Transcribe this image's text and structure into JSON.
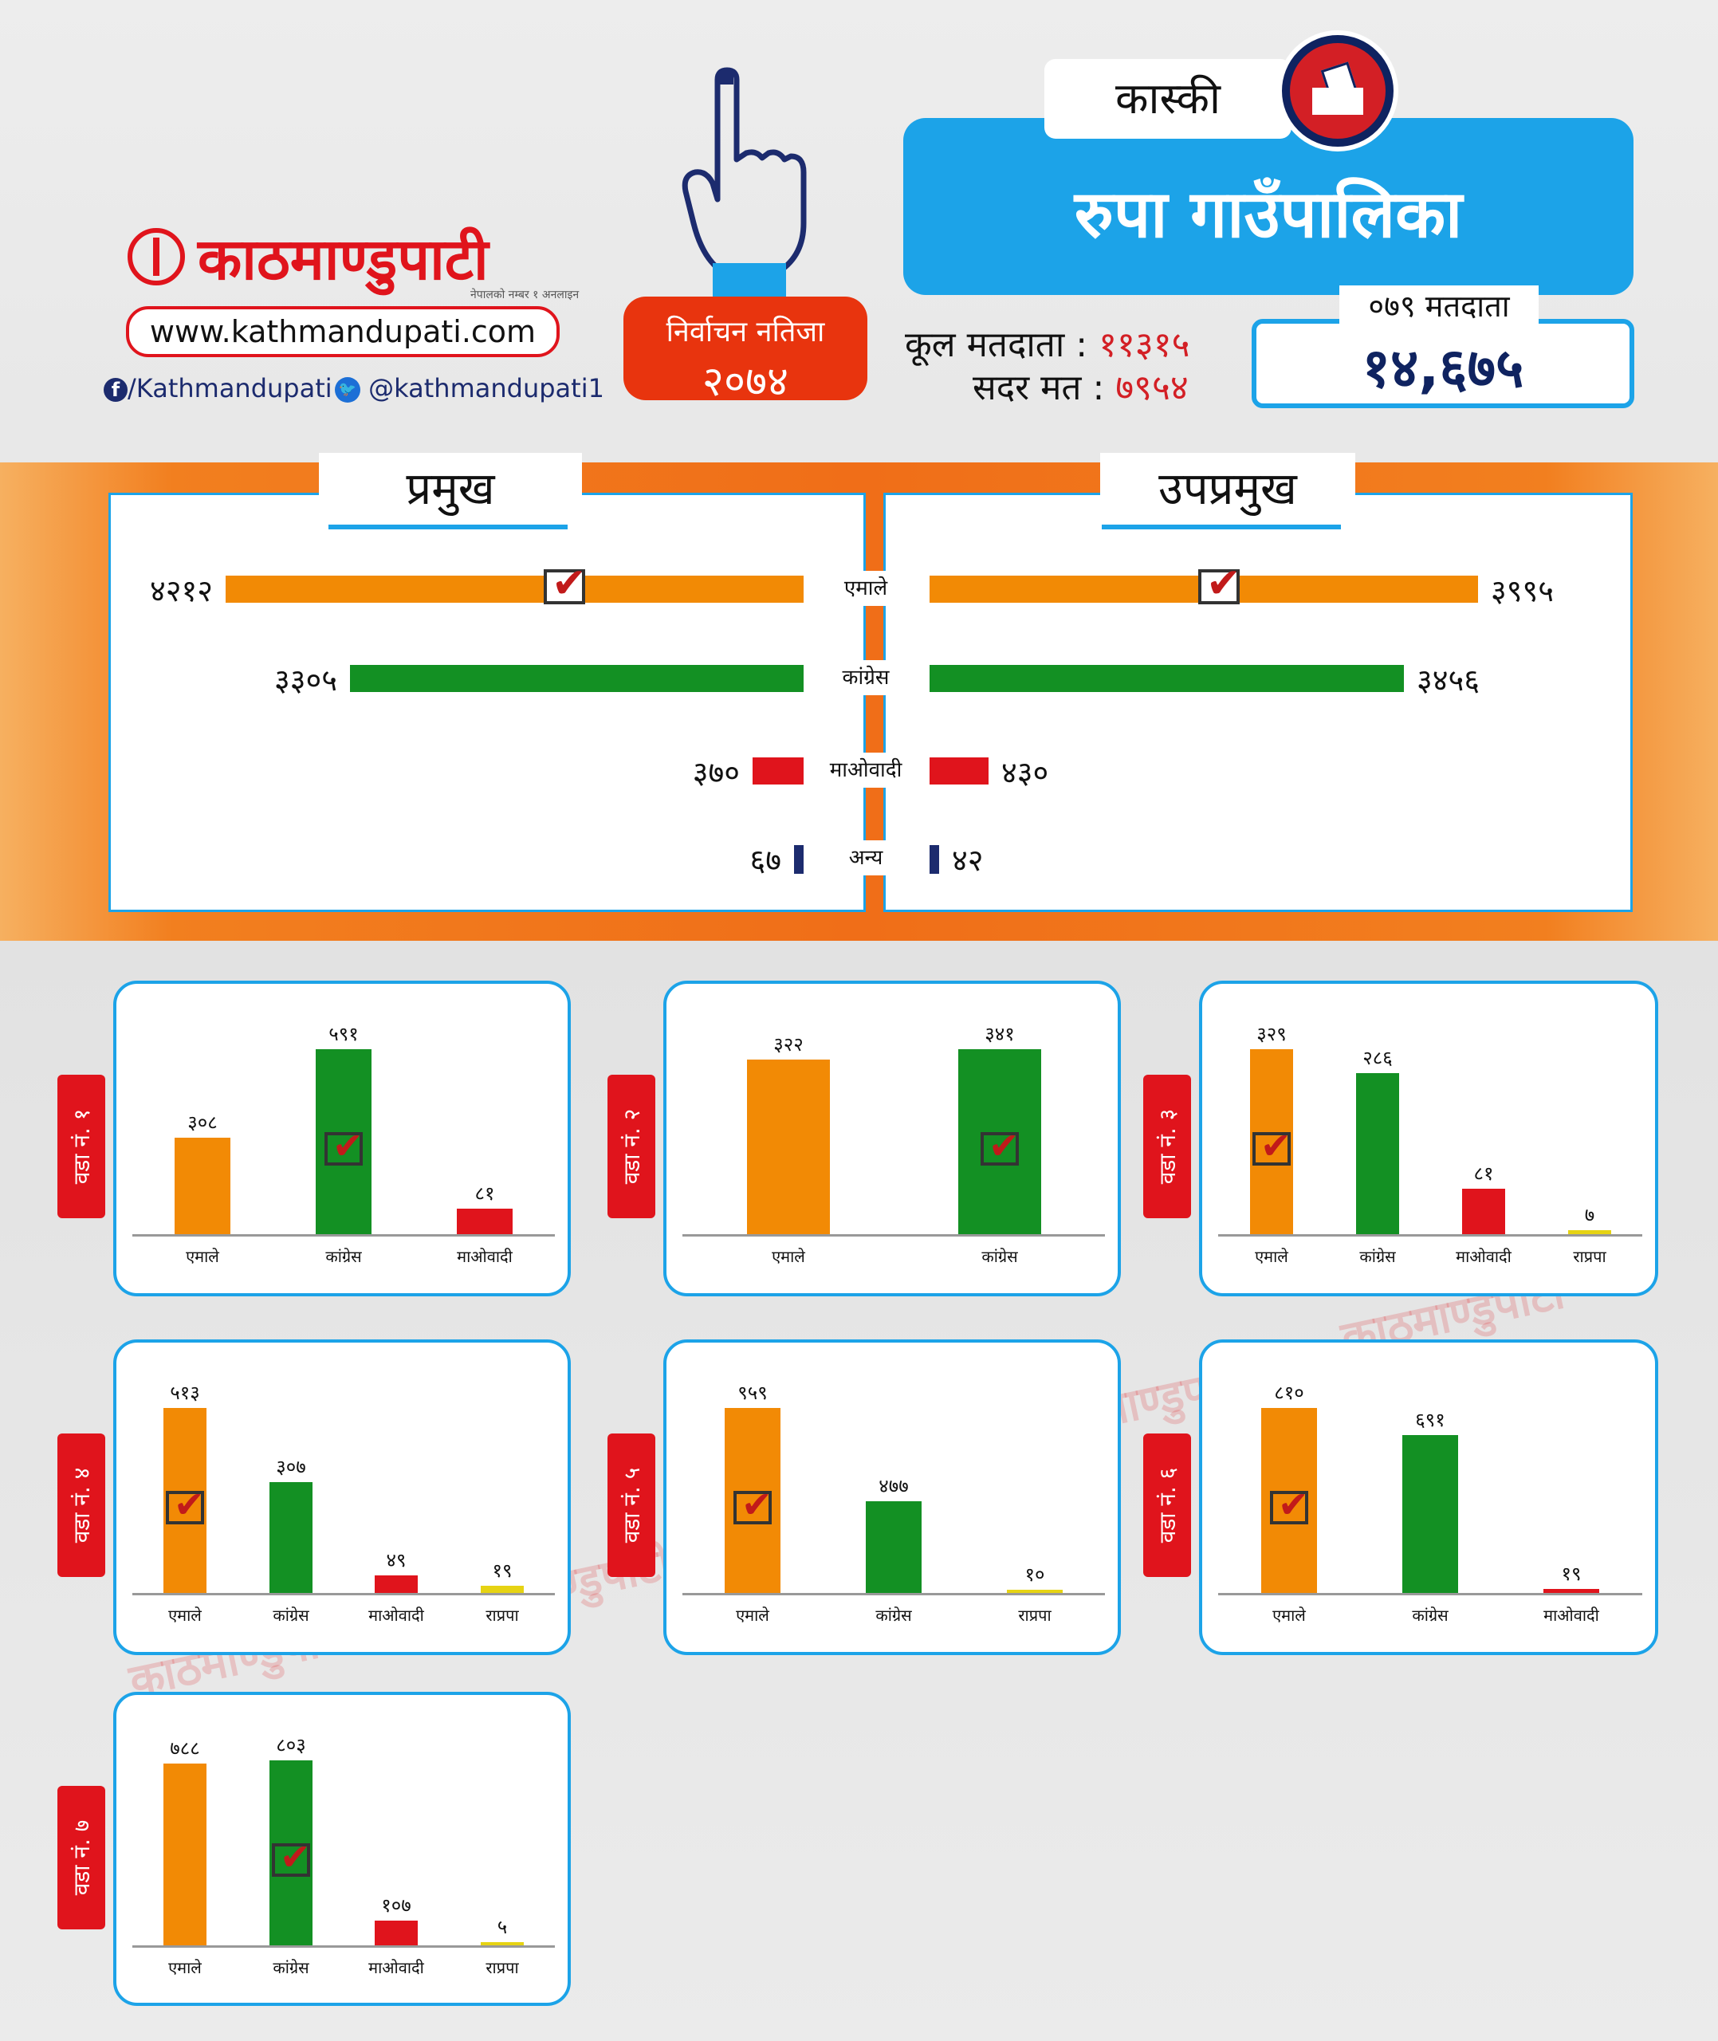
{
  "header": {
    "logo_text": "काठमाण्डुपाटी",
    "logo_tagline": "नेपालको नम्बर १ अनलाइन",
    "url": "www.kathmandupati.com",
    "facebook": "/Kathmandupati",
    "twitter": "@kathmandupati1",
    "result_title": "निर्वाचन नतिजा",
    "result_year": "२०७४",
    "district": "कास्की",
    "municipality": "रुपा गाउँपालिका",
    "total_voters_label": "कूल मतदाता :",
    "total_voters": "११३१५",
    "valid_votes_label": "सदर मत :",
    "valid_votes": "७९५४",
    "voters_079_label": "०७९ मतदाता",
    "voters_079": "१४,६७५"
  },
  "colors": {
    "emale": "#f28a05",
    "congress": "#139023",
    "maoist": "#e0141c",
    "others": "#1c2b6e",
    "rpp": "#e6d313",
    "blue": "#1ca3e8"
  },
  "chart_data": [
    {
      "type": "bar",
      "title": "प्रमुख",
      "categories": [
        "एमाले",
        "कांग्रेस",
        "माओवादी",
        "अन्य"
      ],
      "values": [
        4212,
        3305,
        370,
        67
      ],
      "value_labels": [
        "४२१२",
        "३३०५",
        "३७०",
        "६७"
      ],
      "winner": "एमाले"
    },
    {
      "type": "bar",
      "title": "उपप्रमुख",
      "categories": [
        "एमाले",
        "कांग्रेस",
        "माओवादी",
        "अन्य"
      ],
      "values": [
        3995,
        3456,
        430,
        42
      ],
      "value_labels": [
        "३९९५",
        "३४५६",
        "४३०",
        "४२"
      ],
      "winner": "एमाले"
    },
    {
      "type": "bar",
      "title": "वडा नं. १",
      "categories": [
        "एमाले",
        "कांग्रेस",
        "माओवादी"
      ],
      "values": [
        308,
        591,
        81
      ],
      "value_labels": [
        "३०८",
        "५९१",
        "८१"
      ],
      "winner": "कांग्रेस"
    },
    {
      "type": "bar",
      "title": "वडा नं. २",
      "categories": [
        "एमाले",
        "कांग्रेस"
      ],
      "values": [
        322,
        341
      ],
      "value_labels": [
        "३२२",
        "३४१"
      ],
      "winner": "कांग्रेस"
    },
    {
      "type": "bar",
      "title": "वडा नं. ३",
      "categories": [
        "एमाले",
        "कांग्रेस",
        "माओवादी",
        "राप्रपा"
      ],
      "values": [
        329,
        286,
        81,
        7
      ],
      "value_labels": [
        "३२९",
        "२८६",
        "८१",
        "७"
      ],
      "winner": "एमाले"
    },
    {
      "type": "bar",
      "title": "वडा नं. ४",
      "categories": [
        "एमाले",
        "कांग्रेस",
        "माओवादी",
        "राप्रपा"
      ],
      "values": [
        513,
        307,
        49,
        19
      ],
      "value_labels": [
        "५१३",
        "३०७",
        "४९",
        "१९"
      ],
      "winner": "एमाले"
    },
    {
      "type": "bar",
      "title": "वडा नं. ५",
      "categories": [
        "एमाले",
        "कांग्रेस",
        "राप्रपा"
      ],
      "values": [
        959,
        477,
        10
      ],
      "value_labels": [
        "९५९",
        "४७७",
        "१०"
      ],
      "winner": "एमाले"
    },
    {
      "type": "bar",
      "title": "वडा नं. ६",
      "categories": [
        "एमाले",
        "कांग्रेस",
        "माओवादी"
      ],
      "values": [
        810,
        691,
        19
      ],
      "value_labels": [
        "८१०",
        "६९१",
        "१९"
      ],
      "winner": "एमाले"
    },
    {
      "type": "bar",
      "title": "वडा नं. ७",
      "categories": [
        "एमाले",
        "कांग्रेस",
        "माओवादी",
        "राप्रपा"
      ],
      "values": [
        788,
        803,
        107,
        5
      ],
      "value_labels": [
        "७८८",
        "८०३",
        "१०७",
        "५"
      ],
      "winner": "कांग्रेस"
    }
  ]
}
